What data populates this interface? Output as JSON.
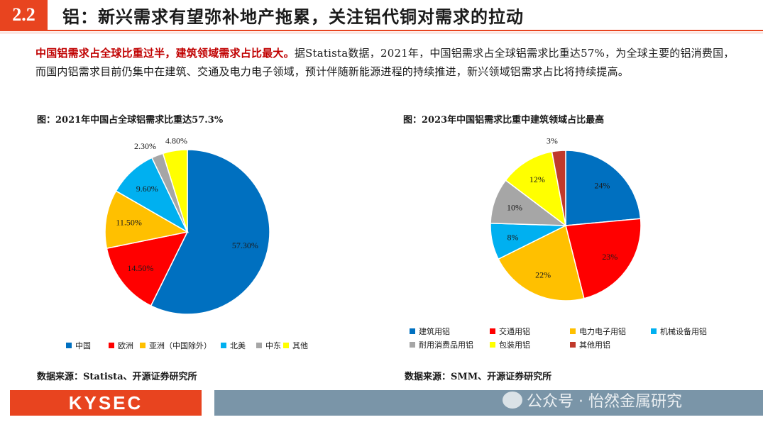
{
  "header": {
    "section_number": "2.2",
    "title": "铝：新兴需求有望弥补地产拖累，关注铝代铜对需求的拉动"
  },
  "intro": {
    "highlight": "中国铝需求占全球比重过半，建筑领域需求占比最大。",
    "body": "据Statista数据，2021年，中国铝需求占全球铝需求比重达57%，为全球主要的铝消费国，而国内铝需求目前仍集中在建筑、交通及电力电子领域，预计伴随新能源进程的持续推进，新兴领域铝需求占比将持续提高。"
  },
  "figure_left": {
    "title": "图：2021年中国占全球铝需求比重达57.3%",
    "source": "数据来源：Statista、开源证券研究所"
  },
  "figure_right": {
    "title": "图：2023年中国铝需求比重中建筑领域占比最高",
    "source": "数据来源：SMM、开源证券研究所"
  },
  "chart_data": [
    {
      "type": "pie",
      "title": "图：2021年中国占全球铝需求比重达57.3%",
      "legend_position": "bottom",
      "slices": [
        {
          "name": "中国",
          "value": 57.3,
          "label": "57.30%",
          "color": "#0070c0"
        },
        {
          "name": "欧洲",
          "value": 14.5,
          "label": "14.50%",
          "color": "#ff0000"
        },
        {
          "name": "亚洲（中国除外）",
          "value": 11.5,
          "label": "11.50%",
          "color": "#ffc000"
        },
        {
          "name": "北美",
          "value": 9.6,
          "label": "9.60%",
          "color": "#00b0f0"
        },
        {
          "name": "中东",
          "value": 2.3,
          "label": "2.30%",
          "color": "#a6a6a6"
        },
        {
          "name": "其他",
          "value": 4.8,
          "label": "4.80%",
          "color": "#ffff00"
        }
      ]
    },
    {
      "type": "pie",
      "title": "图：2023年中国铝需求比重中建筑领域占比最高",
      "legend_position": "bottom",
      "slices": [
        {
          "name": "建筑用铝",
          "value": 24,
          "label": "24%",
          "color": "#0070c0"
        },
        {
          "name": "交通用铝",
          "value": 23,
          "label": "23%",
          "color": "#ff0000"
        },
        {
          "name": "电力电子用铝",
          "value": 22,
          "label": "22%",
          "color": "#ffc000"
        },
        {
          "name": "机械设备用铝",
          "value": 8,
          "label": "8%",
          "color": "#00b0f0"
        },
        {
          "name": "耐用消费品用铝",
          "value": 10,
          "label": "10%",
          "color": "#a6a6a6"
        },
        {
          "name": "包装用铝",
          "value": 12,
          "label": "12%",
          "color": "#ffff00"
        },
        {
          "name": "其他用铝",
          "value": 3,
          "label": "3%",
          "color": "#c0392b"
        }
      ]
    }
  ],
  "footer": {
    "logo": "KYSEC",
    "watermark": "公众号 · 怡然金属研究"
  }
}
